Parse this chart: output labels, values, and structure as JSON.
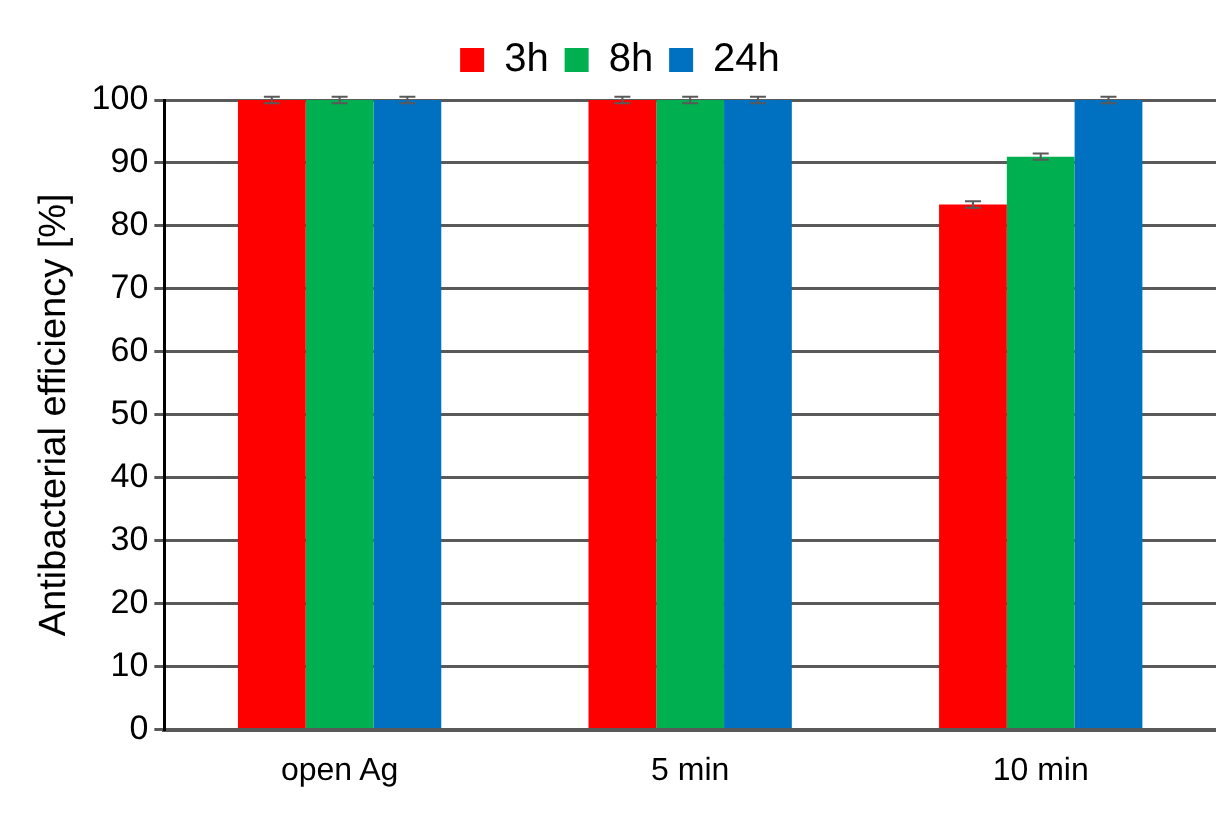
{
  "chart_data": {
    "type": "bar",
    "ylabel": "Antibacterial efficiency [%]",
    "categories": [
      "open Ag",
      "5 min",
      "10 min"
    ],
    "series": [
      {
        "name": "3h",
        "color": "#ff0000",
        "values": [
          100,
          100,
          83.4
        ],
        "errors": [
          0.5,
          0.5,
          0.5
        ]
      },
      {
        "name": "8h",
        "color": "#00b050",
        "values": [
          100,
          100,
          91
        ],
        "errors": [
          0.5,
          0.5,
          0.5
        ]
      },
      {
        "name": "24h",
        "color": "#0070c0",
        "values": [
          100,
          100,
          100
        ],
        "errors": [
          0.5,
          0.5,
          0.5
        ]
      }
    ],
    "ylim": [
      0,
      100
    ],
    "yticks": [
      0,
      10,
      20,
      30,
      40,
      50,
      60,
      70,
      80,
      90,
      100
    ],
    "grid": "y",
    "legend": "top"
  }
}
